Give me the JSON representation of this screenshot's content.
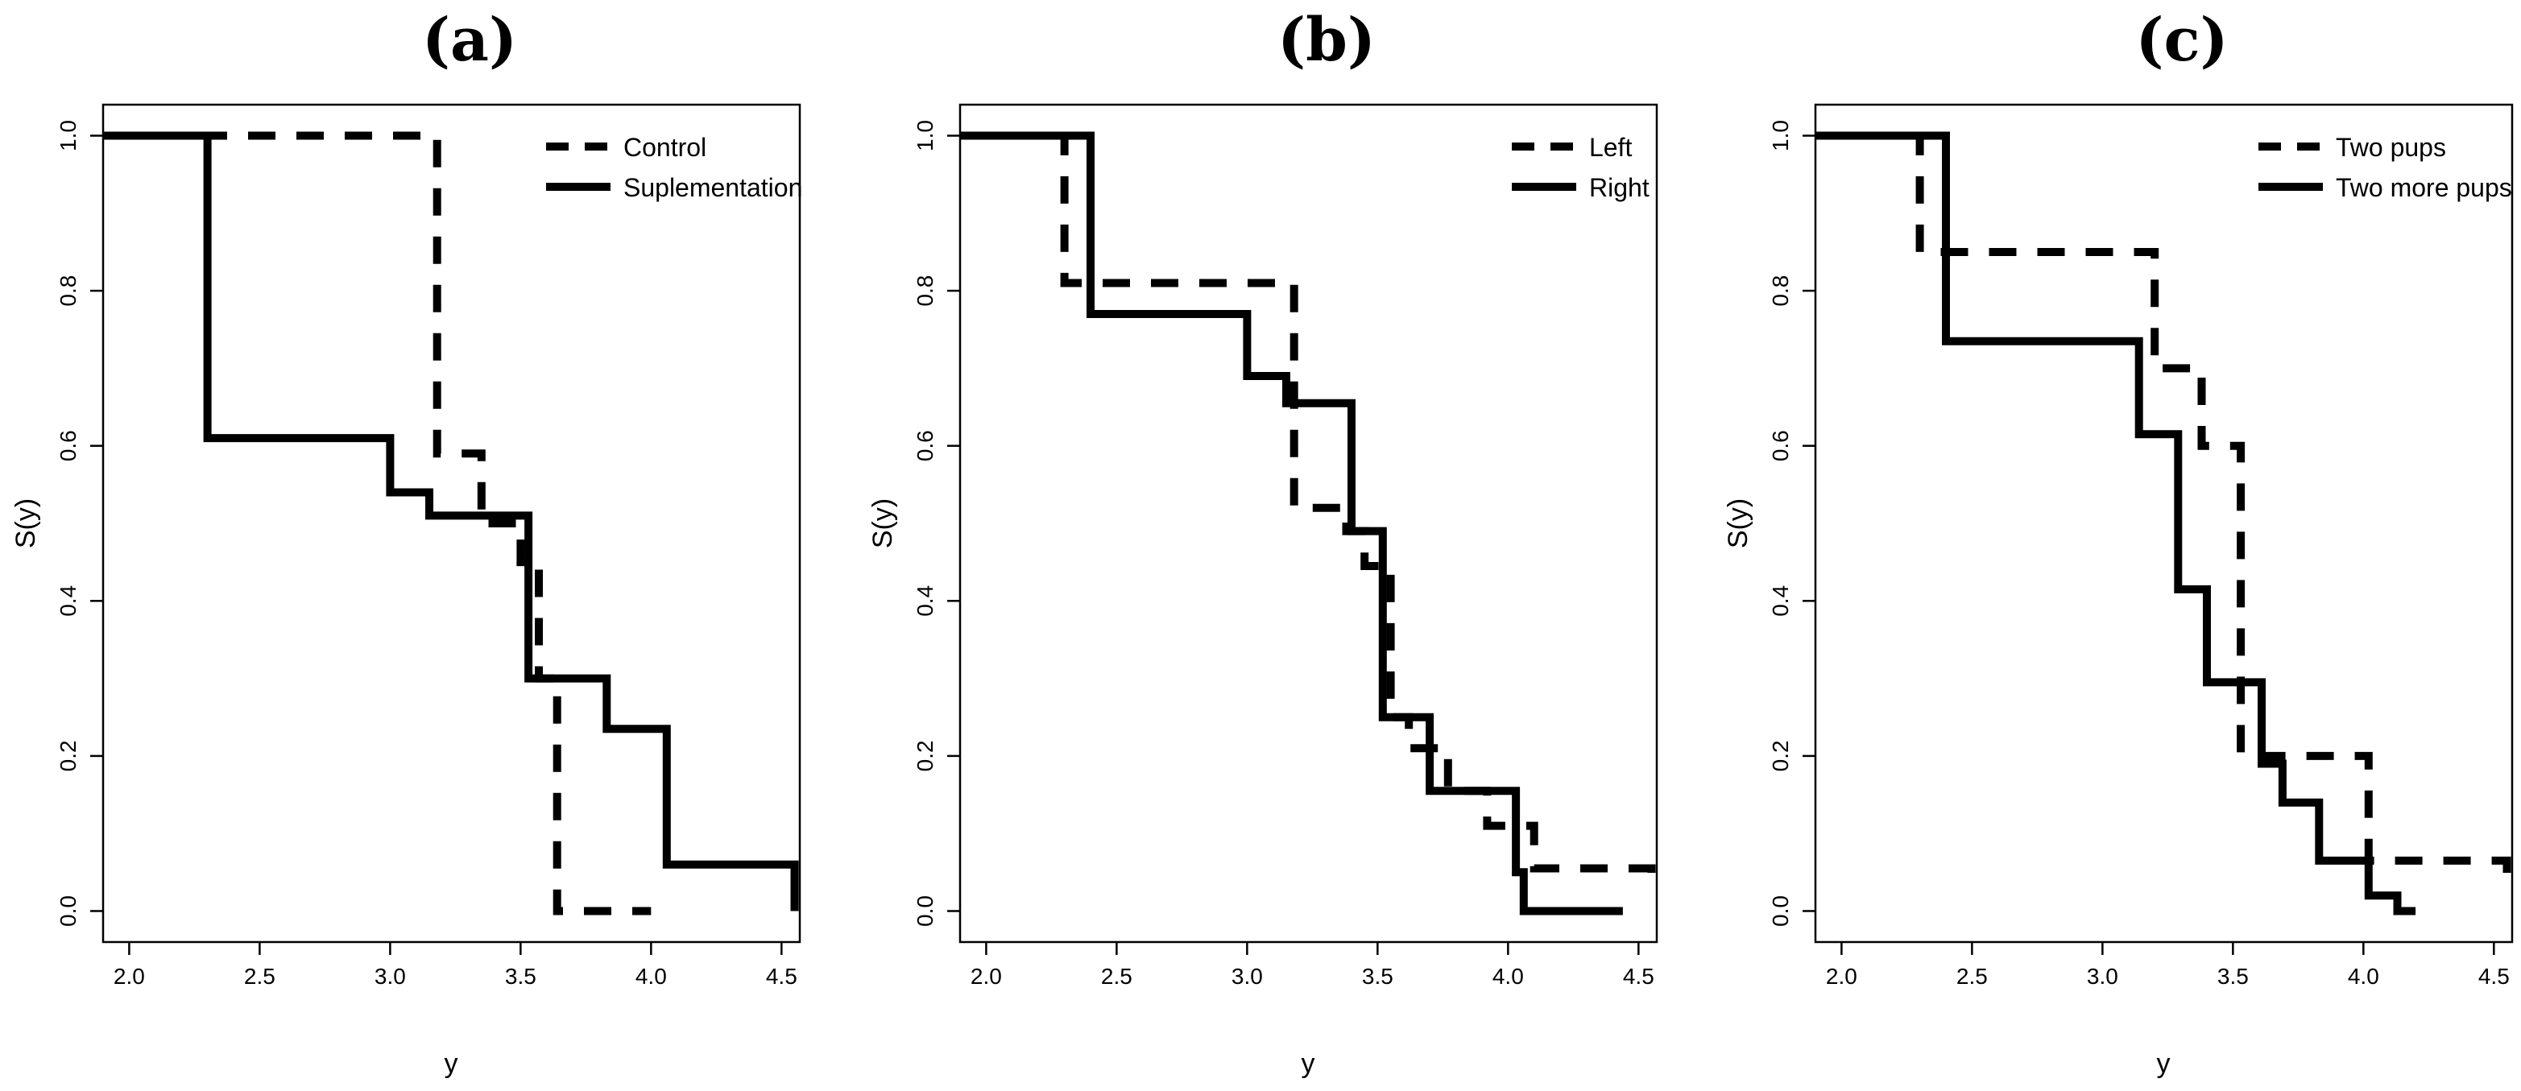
{
  "chart_data": [
    {
      "type": "line",
      "panel_label": "(a)",
      "xlabel": "y",
      "ylabel": "S(y)",
      "xlim": [
        1.9,
        4.57
      ],
      "ylim": [
        -0.04,
        1.04
      ],
      "xticks": [
        2.0,
        2.5,
        3.0,
        3.5,
        4.0,
        4.5
      ],
      "xtick_labels": [
        "2.0",
        "2.5",
        "3.0",
        "3.5",
        "4.0",
        "4.5"
      ],
      "yticks": [
        0.0,
        0.2,
        0.4,
        0.6,
        0.8,
        1.0
      ],
      "ytick_labels": [
        "0.0",
        "0.2",
        "0.4",
        "0.6",
        "0.8",
        "1.0"
      ],
      "legend_position": "top-right",
      "series": [
        {
          "name": "Control",
          "style": "dashed",
          "x": [
            1.9,
            2.32,
            3.18,
            3.35,
            3.5,
            3.57,
            3.64,
            4.0
          ],
          "y": [
            1.0,
            1.0,
            0.59,
            0.5,
            0.45,
            0.3,
            0.0,
            0.0
          ]
        },
        {
          "name": "Suplementation",
          "style": "solid",
          "x": [
            1.9,
            2.3,
            3.0,
            3.15,
            3.53,
            3.53,
            3.83,
            4.06,
            4.55
          ],
          "y": [
            1.0,
            0.61,
            0.54,
            0.51,
            0.3,
            0.3,
            0.235,
            0.06,
            0.0
          ]
        }
      ]
    },
    {
      "type": "line",
      "panel_label": "(b)",
      "xlabel": "y",
      "ylabel": "S(y)",
      "xlim": [
        1.9,
        4.57
      ],
      "ylim": [
        -0.04,
        1.04
      ],
      "xticks": [
        2.0,
        2.5,
        3.0,
        3.5,
        4.0,
        4.5
      ],
      "xtick_labels": [
        "2.0",
        "2.5",
        "3.0",
        "3.5",
        "4.0",
        "4.5"
      ],
      "yticks": [
        0.0,
        0.2,
        0.4,
        0.6,
        0.8,
        1.0
      ],
      "ytick_labels": [
        "0.0",
        "0.2",
        "0.4",
        "0.6",
        "0.8",
        "1.0"
      ],
      "legend_position": "top-right",
      "series": [
        {
          "name": "Left",
          "style": "dashed",
          "x": [
            1.9,
            2.3,
            3.18,
            3.38,
            3.45,
            3.55,
            3.62,
            3.77,
            3.92,
            4.1,
            4.55
          ],
          "y": [
            1.0,
            0.81,
            0.52,
            0.49,
            0.445,
            0.25,
            0.21,
            0.155,
            0.11,
            0.055,
            0.03
          ]
        },
        {
          "name": "Right",
          "style": "solid",
          "x": [
            1.9,
            2.4,
            3.0,
            3.15,
            3.4,
            3.52,
            3.7,
            4.03,
            4.06,
            4.44
          ],
          "y": [
            1.0,
            0.77,
            0.69,
            0.655,
            0.49,
            0.25,
            0.155,
            0.05,
            0.0,
            0.0
          ]
        }
      ]
    },
    {
      "type": "line",
      "panel_label": "(c)",
      "xlabel": "y",
      "ylabel": "S(y)",
      "xlim": [
        1.9,
        4.57
      ],
      "ylim": [
        -0.04,
        1.04
      ],
      "xticks": [
        2.0,
        2.5,
        3.0,
        3.5,
        4.0,
        4.5
      ],
      "xtick_labels": [
        "2.0",
        "2.5",
        "3.0",
        "3.5",
        "4.0",
        "4.5"
      ],
      "yticks": [
        0.0,
        0.2,
        0.4,
        0.6,
        0.8,
        1.0
      ],
      "ytick_labels": [
        "0.0",
        "0.2",
        "0.4",
        "0.6",
        "0.8",
        "1.0"
      ],
      "legend_position": "top-right",
      "series": [
        {
          "name": "Two pups",
          "style": "dashed",
          "x": [
            1.9,
            2.3,
            3.2,
            3.38,
            3.53,
            3.63,
            4.02,
            4.55
          ],
          "y": [
            1.0,
            0.85,
            0.7,
            0.6,
            0.2,
            0.2,
            0.065,
            0.03
          ]
        },
        {
          "name": "Two more pups",
          "style": "solid",
          "x": [
            1.9,
            2.4,
            3.14,
            3.29,
            3.4,
            3.61,
            3.69,
            3.83,
            4.02,
            4.13,
            4.2
          ],
          "y": [
            1.0,
            0.735,
            0.615,
            0.415,
            0.295,
            0.19,
            0.14,
            0.065,
            0.02,
            0.0,
            0.0
          ]
        }
      ]
    }
  ]
}
